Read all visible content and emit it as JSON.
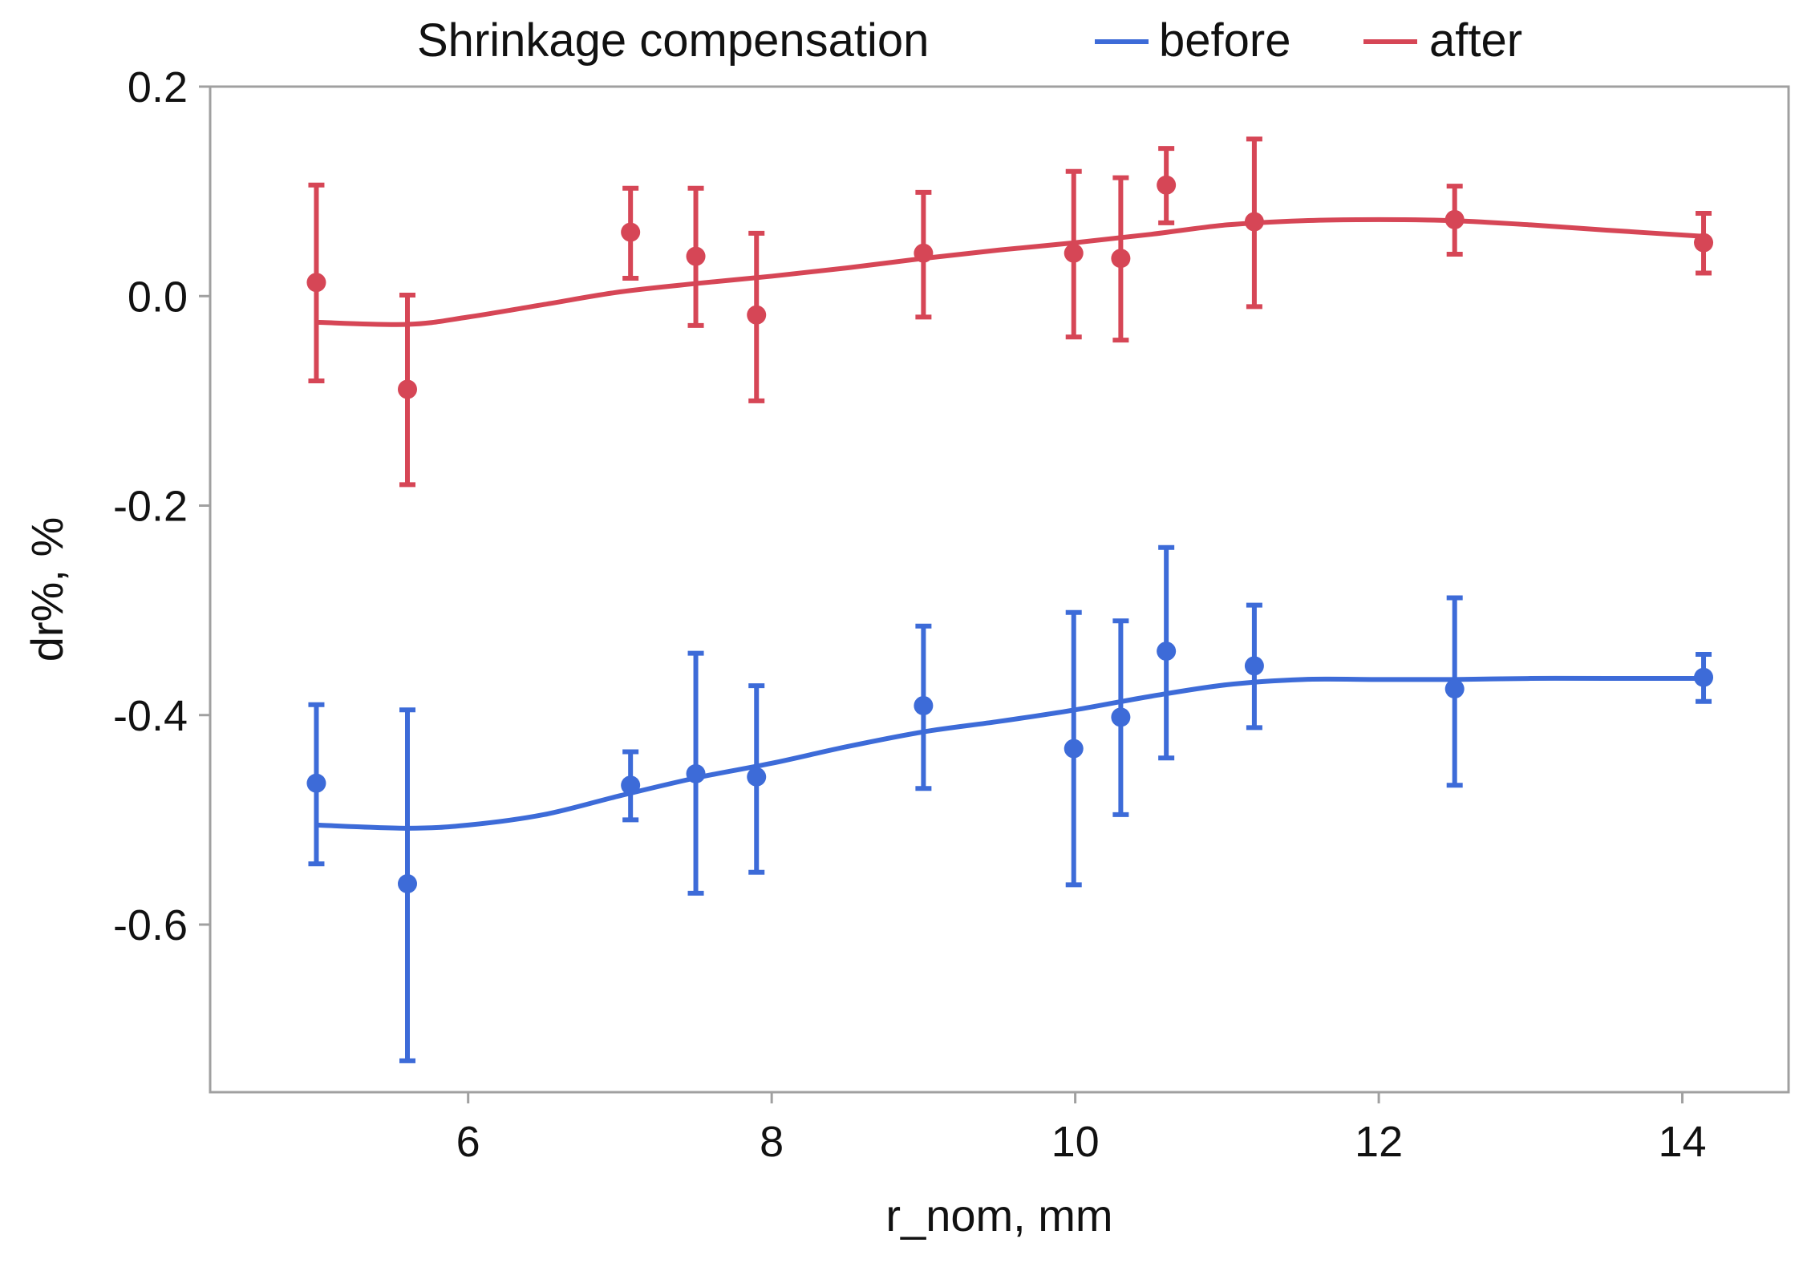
{
  "chart_data": {
    "type": "scatter",
    "title": "",
    "xlabel": "r_nom, mm",
    "ylabel": "dr%, %",
    "xlim": [
      4.3,
      14.7
    ],
    "ylim": [
      -0.76,
      0.2
    ],
    "x_ticks": [
      6,
      8,
      10,
      12,
      14
    ],
    "x_tick_labels": [
      "6",
      "8",
      "10",
      "12",
      "14"
    ],
    "y_ticks": [
      0.2,
      0.0,
      -0.2,
      -0.4,
      -0.6
    ],
    "y_tick_labels": [
      "0.2",
      "0.0",
      "-0.2",
      "-0.4",
      "-0.6"
    ],
    "grid": false,
    "legend": {
      "title": "Shrinkage compensation",
      "position": "top",
      "entries": [
        "before",
        "after"
      ]
    },
    "series": [
      {
        "name": "before",
        "color": "#3d6bd8",
        "points": [
          {
            "x": 5.0,
            "y": -0.465,
            "err_low": -0.542,
            "err_high": -0.39
          },
          {
            "x": 5.6,
            "y": -0.561,
            "err_low": -0.73,
            "err_high": -0.395
          },
          {
            "x": 7.07,
            "y": -0.467,
            "err_low": -0.5,
            "err_high": -0.435
          },
          {
            "x": 7.5,
            "y": -0.456,
            "err_low": -0.57,
            "err_high": -0.341
          },
          {
            "x": 7.9,
            "y": -0.459,
            "err_low": -0.55,
            "err_high": -0.372
          },
          {
            "x": 9.0,
            "y": -0.391,
            "err_low": -0.47,
            "err_high": -0.315
          },
          {
            "x": 9.99,
            "y": -0.432,
            "err_low": -0.562,
            "err_high": -0.302
          },
          {
            "x": 10.3,
            "y": -0.402,
            "err_low": -0.495,
            "err_high": -0.31
          },
          {
            "x": 10.6,
            "y": -0.339,
            "err_low": -0.441,
            "err_high": -0.24
          },
          {
            "x": 11.18,
            "y": -0.353,
            "err_low": -0.412,
            "err_high": -0.295
          },
          {
            "x": 12.5,
            "y": -0.375,
            "err_low": -0.467,
            "err_high": -0.288
          },
          {
            "x": 14.14,
            "y": -0.364,
            "err_low": -0.387,
            "err_high": -0.342
          }
        ],
        "fit": {
          "x": [
            5.0,
            5.6,
            6.0,
            6.5,
            7.0,
            7.5,
            8.0,
            8.5,
            9.0,
            9.5,
            10.0,
            10.5,
            11.0,
            11.5,
            12.0,
            12.5,
            13.0,
            13.5,
            14.14
          ],
          "y": [
            -0.505,
            -0.508,
            -0.505,
            -0.495,
            -0.477,
            -0.46,
            -0.446,
            -0.43,
            -0.416,
            -0.406,
            -0.395,
            -0.382,
            -0.371,
            -0.366,
            -0.366,
            -0.366,
            -0.365,
            -0.365,
            -0.365
          ]
        }
      },
      {
        "name": "after",
        "color": "#d64656",
        "points": [
          {
            "x": 5.0,
            "y": 0.013,
            "err_low": -0.081,
            "err_high": 0.106
          },
          {
            "x": 5.6,
            "y": -0.089,
            "err_low": -0.18,
            "err_high": 0.001
          },
          {
            "x": 7.07,
            "y": 0.061,
            "err_low": 0.017,
            "err_high": 0.103
          },
          {
            "x": 7.5,
            "y": 0.038,
            "err_low": -0.028,
            "err_high": 0.103
          },
          {
            "x": 7.9,
            "y": -0.018,
            "err_low": -0.1,
            "err_high": 0.06
          },
          {
            "x": 9.0,
            "y": 0.041,
            "err_low": -0.02,
            "err_high": 0.099
          },
          {
            "x": 9.99,
            "y": 0.041,
            "err_low": -0.039,
            "err_high": 0.119
          },
          {
            "x": 10.3,
            "y": 0.036,
            "err_low": -0.042,
            "err_high": 0.113
          },
          {
            "x": 10.6,
            "y": 0.106,
            "err_low": 0.07,
            "err_high": 0.141
          },
          {
            "x": 11.18,
            "y": 0.071,
            "err_low": -0.01,
            "err_high": 0.15
          },
          {
            "x": 12.5,
            "y": 0.073,
            "err_low": 0.04,
            "err_high": 0.105
          },
          {
            "x": 14.14,
            "y": 0.051,
            "err_low": 0.022,
            "err_high": 0.079
          }
        ],
        "fit": {
          "x": [
            5.0,
            5.6,
            6.0,
            6.5,
            7.0,
            7.5,
            8.0,
            8.5,
            9.0,
            9.5,
            10.0,
            10.5,
            11.0,
            11.5,
            12.0,
            12.5,
            13.0,
            13.5,
            14.14
          ],
          "y": [
            -0.025,
            -0.027,
            -0.02,
            -0.008,
            0.004,
            0.012,
            0.019,
            0.027,
            0.036,
            0.044,
            0.051,
            0.059,
            0.068,
            0.072,
            0.073,
            0.072,
            0.068,
            0.063,
            0.057
          ]
        }
      }
    ]
  }
}
